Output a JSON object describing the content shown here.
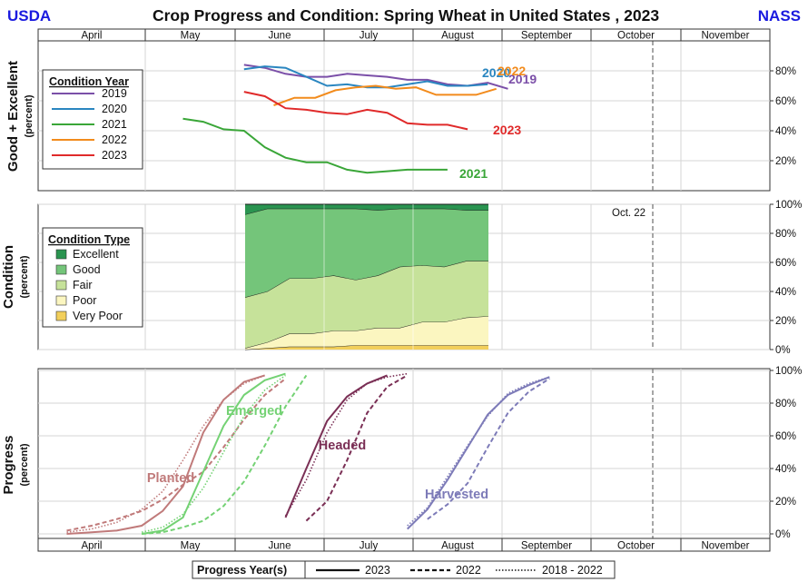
{
  "header": {
    "left_brand": "USDA",
    "title": "Crop Progress and Condition: Spring Wheat in United States , 2023",
    "right_brand": "NASS",
    "brand_color": "#1a1adf"
  },
  "months": [
    "April",
    "May",
    "June",
    "July",
    "August",
    "September",
    "October",
    "November"
  ],
  "markers": {
    "oct22_label": "Oct. 22"
  },
  "chart_data": [
    {
      "type": "line",
      "panel": "good_excellent",
      "ylabel": "Good + Excellent",
      "ylabel_unit": "(percent)",
      "yticks": [
        "20%",
        "40%",
        "60%",
        "80%"
      ],
      "ylim": [
        0,
        100
      ],
      "x_unit": "day of year",
      "grid": true,
      "legend": {
        "title": "Condition Year",
        "placement": "left"
      },
      "series": [
        {
          "name": "2019",
          "color": "#7b4fa8",
          "end_label": "2019",
          "x": [
            155,
            162,
            169,
            176,
            183,
            190,
            197,
            204,
            211,
            218,
            225,
            232,
            239,
            246
          ],
          "y": [
            84,
            82,
            78,
            76,
            76,
            78,
            77,
            76,
            74,
            74,
            71,
            70,
            72,
            68
          ]
        },
        {
          "name": "2020",
          "color": "#2a86c0",
          "end_label": "2020",
          "x": [
            155,
            162,
            169,
            176,
            183,
            190,
            197,
            204,
            211,
            218,
            225,
            232,
            239
          ],
          "y": [
            81,
            83,
            82,
            76,
            70,
            71,
            69,
            69,
            71,
            73,
            70,
            70,
            71
          ]
        },
        {
          "name": "2021",
          "color": "#3aa638",
          "end_label": "2021",
          "x": [
            134,
            141,
            148,
            155,
            162,
            169,
            176,
            183,
            190,
            197,
            204,
            211,
            218,
            225
          ],
          "y": [
            48,
            46,
            41,
            40,
            29,
            22,
            19,
            19,
            14,
            12,
            13,
            14,
            14,
            14
          ]
        },
        {
          "name": "2022",
          "color": "#f28b1c",
          "end_label": "2022",
          "x": [
            165,
            172,
            179,
            186,
            193,
            200,
            207,
            214,
            221,
            228,
            235,
            242
          ],
          "y": [
            57,
            62,
            62,
            67,
            69,
            70,
            68,
            69,
            64,
            64,
            64,
            68
          ]
        },
        {
          "name": "2023",
          "color": "#e02a2a",
          "end_label": "2023",
          "x": [
            155,
            162,
            169,
            176,
            183,
            190,
            197,
            204,
            211,
            218,
            225,
            232
          ],
          "y": [
            66,
            63,
            55,
            54,
            52,
            51,
            54,
            52,
            45,
            44,
            44,
            41
          ]
        }
      ]
    },
    {
      "type": "area",
      "panel": "condition",
      "ylabel": "Condition",
      "ylabel_unit": "(percent)",
      "yticks": [
        "0%",
        "20%",
        "40%",
        "60%",
        "80%",
        "100%"
      ],
      "ylim": [
        0,
        100
      ],
      "x_unit": "day of year",
      "grid": true,
      "legend": {
        "title": "Condition Type",
        "placement": "left"
      },
      "x": [
        158,
        165,
        172,
        179,
        186,
        193,
        200,
        207,
        214,
        221,
        228,
        235
      ],
      "series": [
        {
          "name": "Very Poor",
          "color": "#f2cf5b",
          "values": [
            0,
            1,
            2,
            2,
            2,
            3,
            3,
            3,
            3,
            3,
            3,
            3
          ]
        },
        {
          "name": "Poor",
          "color": "#fbf6c0",
          "values": [
            1,
            4,
            9,
            9,
            11,
            10,
            12,
            12,
            16,
            16,
            19,
            20
          ]
        },
        {
          "name": "Fair",
          "color": "#c6e29a",
          "values": [
            35,
            35,
            38,
            38,
            38,
            35,
            36,
            42,
            39,
            38,
            39,
            38
          ]
        },
        {
          "name": "Good",
          "color": "#74c57a",
          "values": [
            57,
            57,
            48,
            48,
            46,
            49,
            45,
            40,
            39,
            40,
            35,
            35
          ]
        },
        {
          "name": "Excellent",
          "color": "#2a9450",
          "values": [
            7,
            3,
            3,
            3,
            3,
            3,
            4,
            3,
            3,
            3,
            4,
            4
          ]
        }
      ]
    },
    {
      "type": "line",
      "panel": "progress",
      "ylabel": "Progress",
      "ylabel_unit": "(percent)",
      "yticks": [
        "0%",
        "20%",
        "40%",
        "60%",
        "80%",
        "100%"
      ],
      "ylim": [
        0,
        100
      ],
      "x_unit": "day of year",
      "grid": true,
      "legend": {
        "title": "Progress Year(s)",
        "placement": "bottom",
        "entries": [
          "2023",
          "2022",
          "2018 - 2022"
        ]
      },
      "stages": [
        {
          "name": "Planted",
          "color": "#c07a7a",
          "x_2023": [
            99,
            106,
            113,
            120,
            127,
            134,
            141,
            148,
            155,
            162
          ],
          "y_2023": [
            0,
            1,
            2,
            5,
            14,
            29,
            62,
            82,
            93,
            97
          ],
          "x_2022": [
            99,
            106,
            113,
            120,
            127,
            134,
            141,
            148,
            155,
            162,
            169
          ],
          "y_2022": [
            2,
            5,
            9,
            14,
            21,
            30,
            38,
            53,
            70,
            85,
            95
          ],
          "x_avg": [
            99,
            106,
            113,
            120,
            127,
            134,
            141,
            148,
            155,
            162
          ],
          "y_avg": [
            1,
            3,
            7,
            15,
            26,
            45,
            66,
            82,
            92,
            97
          ]
        },
        {
          "name": "Emerged",
          "color": "#74d274",
          "x_2023": [
            120,
            127,
            134,
            141,
            148,
            155,
            162,
            169
          ],
          "y_2023": [
            0,
            2,
            10,
            38,
            66,
            85,
            94,
            98
          ],
          "x_2022": [
            120,
            127,
            134,
            141,
            148,
            155,
            162,
            169,
            176
          ],
          "y_2022": [
            0,
            1,
            4,
            8,
            17,
            32,
            54,
            78,
            97
          ],
          "x_avg": [
            120,
            127,
            134,
            141,
            148,
            155,
            162,
            169
          ],
          "y_avg": [
            1,
            4,
            12,
            28,
            50,
            72,
            88,
            97
          ]
        },
        {
          "name": "Headed",
          "color": "#7a2f55",
          "x_2023": [
            169,
            176,
            183,
            190,
            197,
            204
          ],
          "y_2023": [
            10,
            40,
            69,
            84,
            92,
            97
          ],
          "x_2022": [
            176,
            183,
            190,
            197,
            204,
            211
          ],
          "y_2022": [
            8,
            20,
            45,
            74,
            90,
            97
          ],
          "x_avg": [
            169,
            176,
            183,
            190,
            197,
            204,
            211
          ],
          "y_avg": [
            11,
            33,
            62,
            82,
            92,
            96,
            98
          ]
        },
        {
          "name": "Harvested",
          "color": "#7d7bb8",
          "x_2023": [
            211,
            218,
            225,
            232,
            239,
            246,
            253,
            260
          ],
          "y_2023": [
            3,
            15,
            33,
            53,
            73,
            85,
            91,
            96
          ],
          "x_2022": [
            218,
            225,
            232,
            239,
            246,
            253,
            260
          ],
          "y_2022": [
            9,
            18,
            31,
            53,
            74,
            87,
            95
          ],
          "x_avg": [
            211,
            218,
            225,
            232,
            239,
            246,
            253,
            260
          ],
          "y_avg": [
            5,
            16,
            35,
            54,
            72,
            86,
            92,
            96
          ]
        }
      ]
    }
  ]
}
